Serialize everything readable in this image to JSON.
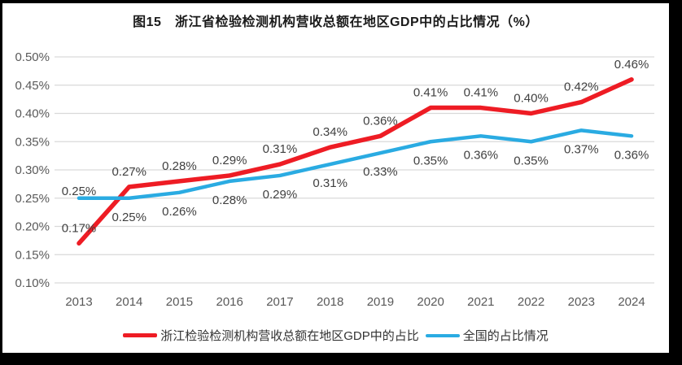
{
  "figure": {
    "title": "图15　浙江省检验检测机构营收总额在地区GDP中的占比情况（%）",
    "frame_color": "#000000",
    "panel_background": "#ffffff"
  },
  "chart_data": {
    "type": "line",
    "title": "图15　浙江省检验检测机构营收总额在地区GDP中的占比情况（%）",
    "categories": [
      "2013",
      "2014",
      "2015",
      "2016",
      "2017",
      "2018",
      "2019",
      "2020",
      "2021",
      "2022",
      "2023",
      "2024"
    ],
    "xlabel": "",
    "ylabel": "",
    "ylim": [
      0.1,
      0.5
    ],
    "grid": "horizontal",
    "legend_position": "bottom",
    "y_ticks": [
      {
        "label": "0.50%",
        "value": 0.5
      },
      {
        "label": "0.45%",
        "value": 0.45
      },
      {
        "label": "0.40%",
        "value": 0.4
      },
      {
        "label": "0.35%",
        "value": 0.35
      },
      {
        "label": "0.30%",
        "value": 0.3
      },
      {
        "label": "0.25%",
        "value": 0.25
      },
      {
        "label": "0.20%",
        "value": 0.2
      },
      {
        "label": "0.15%",
        "value": 0.15
      },
      {
        "label": "0.10%",
        "value": 0.1
      }
    ],
    "series": [
      {
        "id": "zhejiang",
        "name": "浙江检验检测机构营收总额在地区GDP中的占比",
        "color": "#ee1c24",
        "stroke_width": 5.5,
        "values": [
          0.17,
          0.27,
          0.28,
          0.29,
          0.31,
          0.34,
          0.36,
          0.41,
          0.41,
          0.4,
          0.42,
          0.46
        ],
        "labels": [
          "0.17%",
          "0.27%",
          "0.28%",
          "0.29%",
          "0.31%",
          "0.34%",
          "0.36%",
          "0.41%",
          "0.41%",
          "0.40%",
          "0.42%",
          "0.46%"
        ],
        "label_side": "above",
        "label_side_overrides": {}
      },
      {
        "id": "national",
        "name": "全国的占比情况",
        "color": "#2aabe2",
        "stroke_width": 4.5,
        "values": [
          0.25,
          0.25,
          0.26,
          0.28,
          0.29,
          0.31,
          0.33,
          0.35,
          0.36,
          0.35,
          0.37,
          0.36
        ],
        "labels": [
          "0.25%",
          "0.25%",
          "0.26%",
          "0.28%",
          "0.29%",
          "0.31%",
          "0.33%",
          "0.35%",
          "0.36%",
          "0.35%",
          "0.37%",
          "0.36%"
        ],
        "label_side": "below",
        "label_side_overrides": {
          "0": "above"
        }
      }
    ],
    "gridline_color": "#d9d9d9",
    "axis_text_color": "#595959",
    "data_label_color": "#404040"
  }
}
